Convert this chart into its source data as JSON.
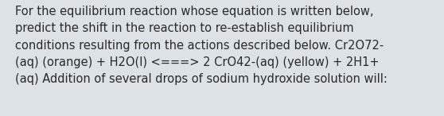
{
  "text": "For the equilibrium reaction whose equation is written below,\npredict the shift in the reaction to re-establish equilibrium\nconditions resulting from the actions described below. Cr2O72-\n(aq) (orange) + H2O(l) <===> 2 CrO42-(aq) (yellow) + 2H1+\n(aq) Addition of several drops of sodium hydroxide solution will:",
  "background_color": "#dde2e6",
  "text_color": "#2a2a2a",
  "font_size": 10.5,
  "font_family": "DejaVu Sans",
  "fig_width": 5.58,
  "fig_height": 1.46,
  "dpi": 100
}
